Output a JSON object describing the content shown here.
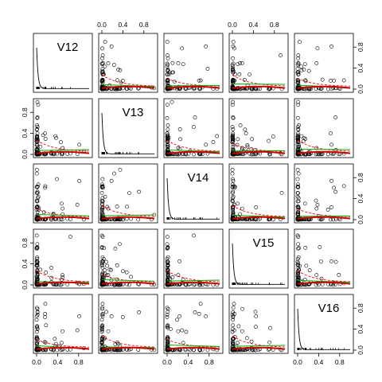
{
  "chart_data": {
    "type": "scatter",
    "title": "",
    "variables": [
      "V12",
      "V13",
      "V14",
      "V15",
      "V16"
    ],
    "axis_range": [
      0,
      1
    ],
    "axis_ticks": [
      {
        "value": 0.0,
        "label": "0.0"
      },
      {
        "value": 0.4,
        "label": "0.4"
      },
      {
        "value": 0.8,
        "label": "0.8"
      }
    ],
    "top_axis_columns": [
      2,
      4
    ],
    "bottom_axis_columns": [
      1,
      3,
      5
    ],
    "left_axis_rows": [
      2,
      4
    ],
    "right_axis_rows": [
      1,
      3,
      5
    ],
    "diagonal": "kernel density",
    "lower_panels": "scatter with red dashed smoother and green/red fitted lines",
    "upper_panels": "scatter with red dashed smoother and green/red fitted lines",
    "colors": {
      "points": "#000000",
      "smooth_line": "#FF0000",
      "regression_line": "#00AA00",
      "fit_line": "#CC0000",
      "density_line": "#000000"
    },
    "grid": false,
    "legend": "none"
  }
}
